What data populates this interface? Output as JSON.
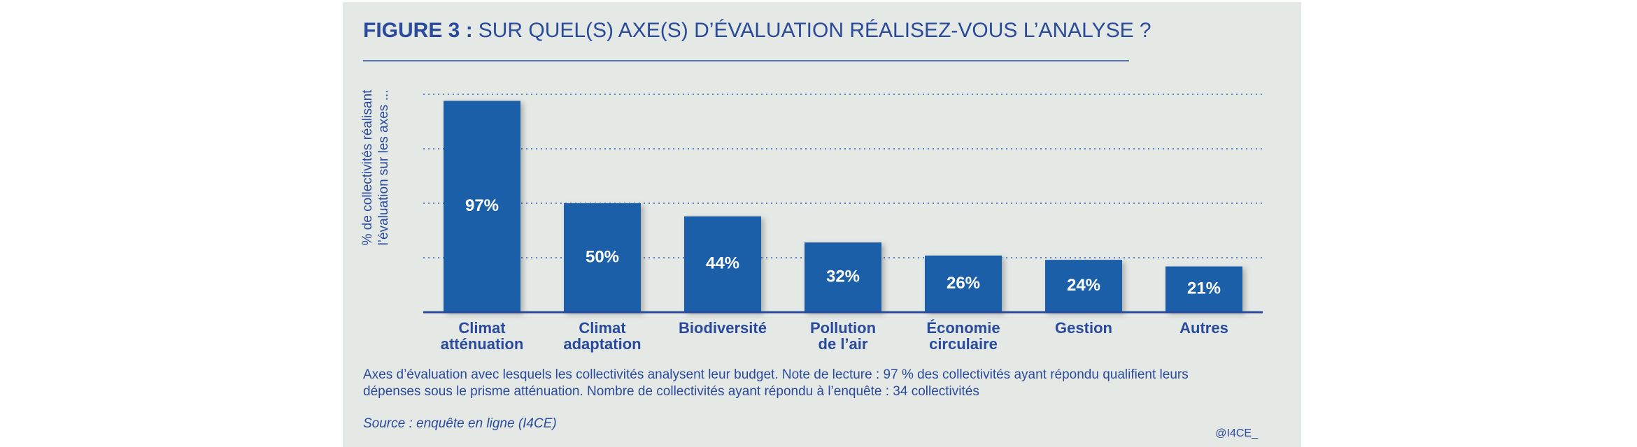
{
  "chart_data": {
    "type": "bar",
    "figure_label": "FIGURE 3 :",
    "title": "SUR QUEL(S) AXE(S) D’ÉVALUATION RÉALISEZ-VOUS L’ANALYSE ?",
    "y_label": [
      "% de collectivités réalisant",
      "l’évaluation sur les axes ..."
    ],
    "categories": [
      "Climat\natténuation",
      "Climat\nadaptation",
      "Biodiversité",
      "Pollution\nde l’air",
      "Économie\ncirculaire",
      "Gestion",
      "Autres"
    ],
    "values": [
      97,
      50,
      44,
      32,
      26,
      24,
      21
    ],
    "value_labels": [
      "97%",
      "50%",
      "44%",
      "32%",
      "26%",
      "24%",
      "21%"
    ],
    "color": "#1b5ea9",
    "ylim": [
      0,
      100
    ],
    "yticks": [
      0,
      25,
      50,
      75,
      100
    ],
    "grid": true,
    "note": [
      "Axes d’évaluation avec lesquels les collectivités analysent leur budget. Note de lecture : 97 % des collectivités ayant répondu qualifient leurs",
      "dépenses sous le prisme atténuation. Nombre de collectivités ayant répondu à l’enquête : 34 collectivités"
    ],
    "source": "Source : enquête en ligne (I4CE)",
    "credit": "@I4CE_"
  }
}
